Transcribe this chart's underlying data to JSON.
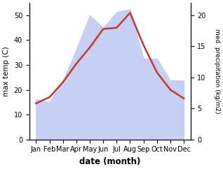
{
  "months": [
    "Jan",
    "Feb",
    "Mar",
    "Apr",
    "May",
    "Jun",
    "Jul",
    "Aug",
    "Sep",
    "Oct",
    "Nov",
    "Dec"
  ],
  "month_positions": [
    1,
    2,
    3,
    4,
    5,
    6,
    7,
    8,
    9,
    10,
    11,
    12
  ],
  "temperature": [
    14.5,
    17.0,
    23.0,
    30.5,
    37.0,
    44.5,
    45.0,
    51.0,
    38.0,
    27.0,
    20.0,
    16.5
  ],
  "precipitation": [
    6.5,
    6.0,
    9.5,
    14.5,
    20.0,
    18.0,
    20.5,
    21.0,
    13.0,
    13.0,
    9.5,
    9.5
  ],
  "temp_color": "#c0392b",
  "precip_fill_color": "#c8cff5",
  "temp_ylim": [
    0,
    55
  ],
  "precip_ylim": [
    0,
    22
  ],
  "temp_yticks": [
    0,
    10,
    20,
    30,
    40,
    50
  ],
  "precip_yticks": [
    0,
    5,
    10,
    15,
    20
  ],
  "xlabel": "date (month)",
  "ylabel_left": "max temp (C)",
  "ylabel_right": "med. precipitation (kg/m2)",
  "background_color": "#ffffff"
}
